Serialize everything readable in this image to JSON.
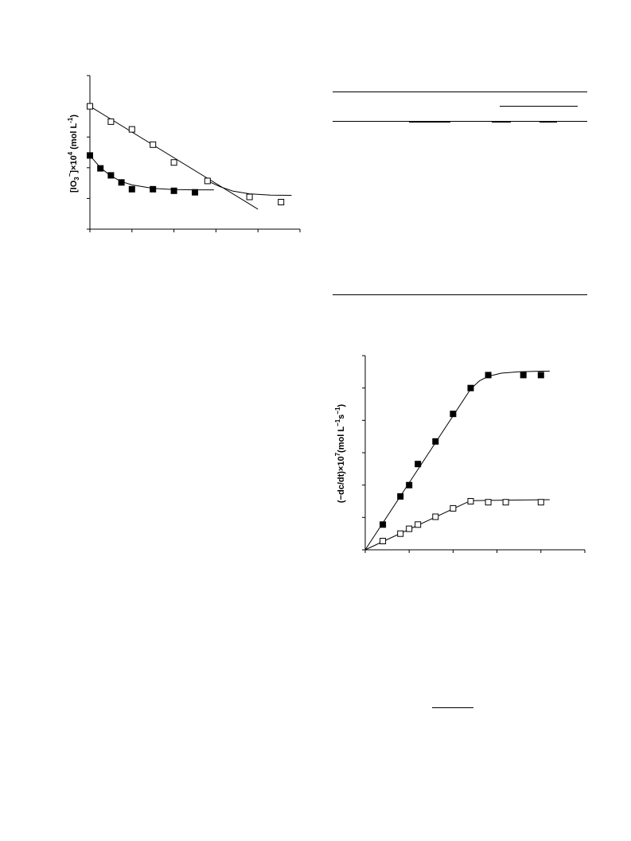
{
  "charts": {
    "top": {
      "ylabel_parts": {
        "open": "[IO",
        "sub": "3",
        "sup": "−",
        "mid": "]×10",
        "exp": "4",
        "unit_open": " (mol  L",
        "unit_exp": "-1",
        "unit_close": ")"
      }
    },
    "bottom": {
      "ylabel_parts": {
        "open": "(−dc/dt)×10",
        "exp": "7",
        "unit_open": "(mol L",
        "unit_exp1": "−1",
        "unit_mid": "s",
        "unit_exp2": "−1",
        "unit_close": ")"
      }
    }
  },
  "chart_data": [
    {
      "type": "scatter",
      "title": "",
      "xlabel": "",
      "ylabel": "[IO3−]×10^4 (mol L-1)",
      "xlim": [
        0,
        5
      ],
      "ylim": [
        0,
        5
      ],
      "xticks": 5,
      "yticks": 5,
      "series": [
        {
          "marker": "open-square",
          "x": [
            0.0,
            0.5,
            1.0,
            1.5,
            2.0,
            2.8,
            3.8,
            4.55
          ],
          "y": [
            4.0,
            3.5,
            3.25,
            2.75,
            2.17,
            1.57,
            1.05,
            0.88
          ],
          "fit_line": [
            [
              0.0,
              4.0
            ],
            [
              4.0,
              0.65
            ]
          ],
          "fit_curve": [
            [
              2.8,
              1.57
            ],
            [
              3.1,
              1.38
            ],
            [
              3.4,
              1.24
            ],
            [
              3.8,
              1.15
            ],
            [
              4.3,
              1.11
            ],
            [
              4.8,
              1.1
            ]
          ]
        },
        {
          "marker": "filled-square",
          "x": [
            0.0,
            0.25,
            0.5,
            0.75,
            1.0,
            1.5,
            2.0,
            2.5
          ],
          "y": [
            2.4,
            1.98,
            1.75,
            1.52,
            1.3,
            1.3,
            1.25,
            1.2
          ],
          "fit_curve": [
            [
              0.0,
              2.4
            ],
            [
              0.25,
              2.0
            ],
            [
              0.5,
              1.73
            ],
            [
              0.75,
              1.55
            ],
            [
              1.0,
              1.44
            ],
            [
              1.5,
              1.33
            ],
            [
              2.0,
              1.29
            ],
            [
              2.5,
              1.28
            ],
            [
              2.95,
              1.28
            ]
          ]
        }
      ]
    },
    {
      "type": "scatter",
      "title": "",
      "xlabel": "",
      "ylabel": "(−dc/dt)×10^7 (mol L−1 s−1)",
      "xlim": [
        0,
        5
      ],
      "ylim": [
        0,
        6
      ],
      "xticks": 5,
      "yticks": 6,
      "series": [
        {
          "marker": "filled-square",
          "x": [
            0.4,
            0.8,
            1.0,
            1.2,
            1.6,
            2.0,
            2.4,
            2.8,
            3.6,
            4.0
          ],
          "y": [
            0.78,
            1.65,
            2.0,
            2.65,
            3.35,
            4.2,
            5.0,
            5.4,
            5.4,
            5.4
          ],
          "fit_curve": [
            [
              0.0,
              0.0
            ],
            [
              2.4,
              4.97
            ],
            [
              2.6,
              5.22
            ],
            [
              2.8,
              5.36
            ],
            [
              3.1,
              5.46
            ],
            [
              3.5,
              5.5
            ],
            [
              4.0,
              5.52
            ],
            [
              4.2,
              5.52
            ]
          ]
        },
        {
          "marker": "open-square",
          "x": [
            0.4,
            0.8,
            1.0,
            1.2,
            1.6,
            2.0,
            2.4,
            2.8,
            3.2,
            4.0
          ],
          "y": [
            0.27,
            0.5,
            0.65,
            0.78,
            1.02,
            1.28,
            1.5,
            1.47,
            1.47,
            1.47
          ],
          "fit_curve": [
            [
              0.0,
              0.0
            ],
            [
              2.4,
              1.52
            ],
            [
              4.2,
              1.55
            ]
          ]
        }
      ]
    }
  ]
}
